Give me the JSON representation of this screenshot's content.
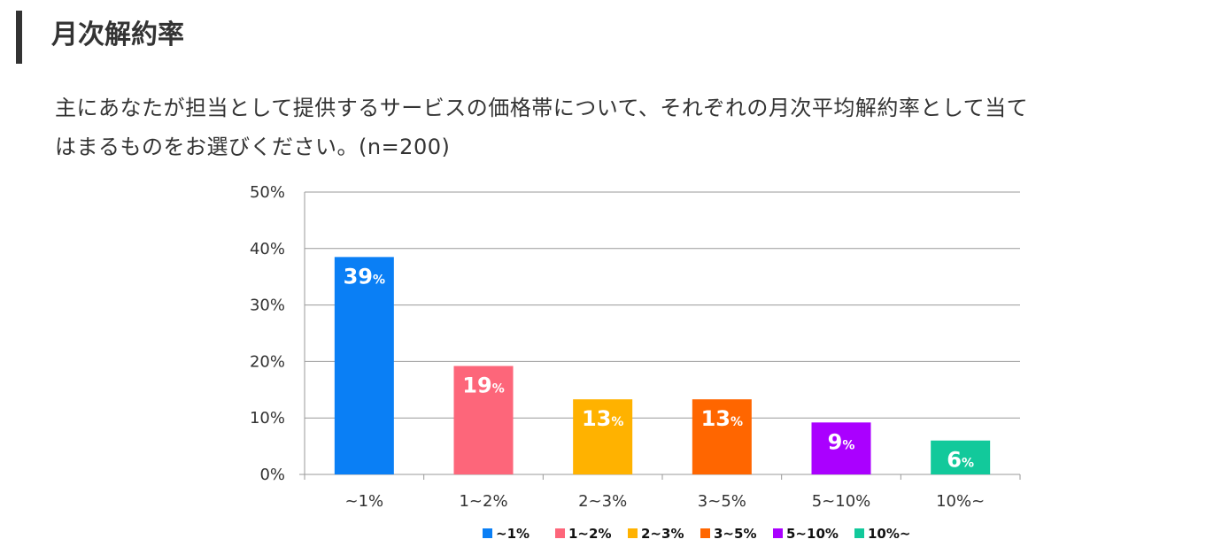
{
  "page": {
    "title": "月次解約率",
    "question_line1": "主にあなたが担当として提供するサービスの価格帯について、それぞれの月次平均解約率として当て",
    "question_line2": "はまるものをお選びください。(n=200)"
  },
  "chart_data": {
    "type": "bar",
    "categories": [
      "~1%",
      "1~2%",
      "2~3%",
      "3~5%",
      "5~10%",
      "10%~"
    ],
    "values": [
      39,
      19,
      13,
      13,
      9,
      6
    ],
    "display_values": [
      38.5,
      19.2,
      13.3,
      13.3,
      9.2,
      6.0
    ],
    "value_suffix": "%",
    "colors": [
      "#0a7ff5",
      "#fd667a",
      "#ffb200",
      "#ff6600",
      "#aa00ff",
      "#12c99b"
    ],
    "yticks": [
      "0%",
      "10%",
      "20%",
      "30%",
      "40%",
      "50%"
    ],
    "ylim": [
      0,
      50
    ],
    "grid": true,
    "legend_position": "bottom-center",
    "legend": [
      "~1%",
      "1~2%",
      "2~3%",
      "3~5%",
      "5~10%",
      "10%~"
    ],
    "title": "",
    "xlabel": "",
    "ylabel": ""
  }
}
